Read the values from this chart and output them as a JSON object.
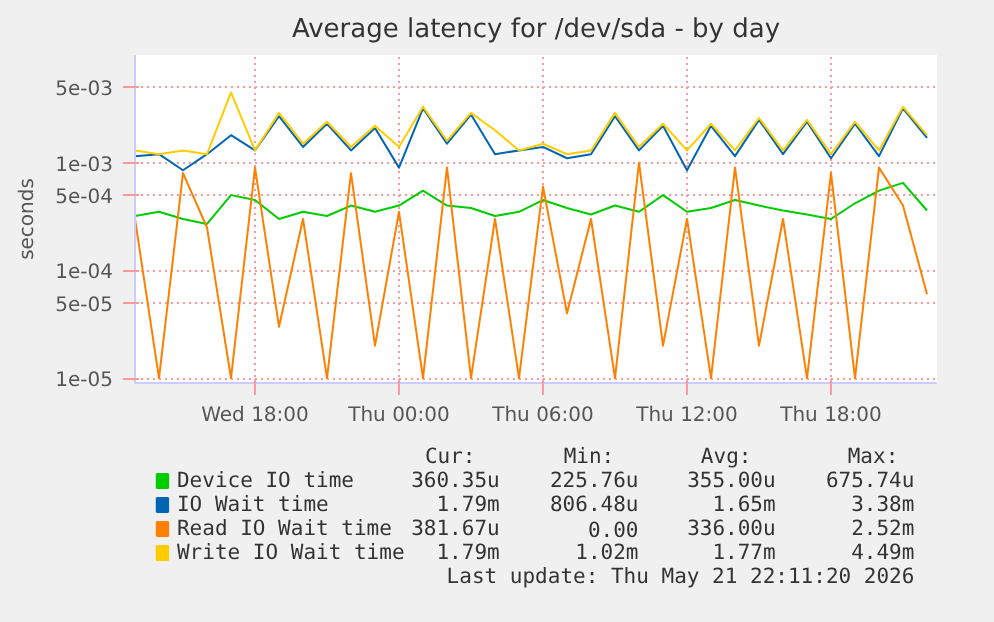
{
  "chart_data": {
    "type": "line",
    "title": "Average latency for /dev/sda - by day",
    "ylabel": "seconds",
    "x": [
      "2026-05-20T13:00",
      "2026-05-20T14:00",
      "2026-05-20T15:00",
      "2026-05-20T16:00",
      "2026-05-20T17:00",
      "2026-05-20T18:00",
      "2026-05-20T19:00",
      "2026-05-20T20:00",
      "2026-05-20T21:00",
      "2026-05-20T22:00",
      "2026-05-20T23:00",
      "2026-05-21T00:00",
      "2026-05-21T01:00",
      "2026-05-21T02:00",
      "2026-05-21T03:00",
      "2026-05-21T04:00",
      "2026-05-21T05:00",
      "2026-05-21T06:00",
      "2026-05-21T07:00",
      "2026-05-21T08:00",
      "2026-05-21T09:00",
      "2026-05-21T10:00",
      "2026-05-21T11:00",
      "2026-05-21T12:00",
      "2026-05-21T13:00",
      "2026-05-21T14:00",
      "2026-05-21T15:00",
      "2026-05-21T16:00",
      "2026-05-21T17:00",
      "2026-05-21T18:00",
      "2026-05-21T19:00",
      "2026-05-21T20:00",
      "2026-05-21T21:00",
      "2026-05-21T22:00"
    ],
    "series": [
      {
        "name": "Device IO time",
        "color": "#00cc00",
        "values": [
          0.00032,
          0.00035,
          0.0003,
          0.00027,
          0.0005,
          0.00045,
          0.0003,
          0.00035,
          0.00032,
          0.0004,
          0.00035,
          0.0004,
          0.00055,
          0.0004,
          0.00038,
          0.00032,
          0.00035,
          0.00045,
          0.00038,
          0.00033,
          0.0004,
          0.00035,
          0.0005,
          0.00035,
          0.00038,
          0.00045,
          0.0004,
          0.00036,
          0.00033,
          0.0003,
          0.00042,
          0.00055,
          0.00065,
          0.00036
        ]
      },
      {
        "name": "IO Wait time",
        "color": "#0066b3",
        "values": [
          0.00115,
          0.0012,
          0.00085,
          0.0012,
          0.0018,
          0.0013,
          0.0027,
          0.0014,
          0.0023,
          0.0013,
          0.0021,
          0.0009,
          0.0032,
          0.0015,
          0.0028,
          0.0012,
          0.0013,
          0.0014,
          0.0011,
          0.0012,
          0.0027,
          0.0013,
          0.0022,
          0.00085,
          0.0022,
          0.00115,
          0.0025,
          0.0012,
          0.0024,
          0.0011,
          0.0023,
          0.00115,
          0.0032,
          0.0017
        ]
      },
      {
        "name": "Read IO Wait time",
        "color": "#ff8000",
        "values": [
          0.0003,
          1e-05,
          0.0008,
          0.00025,
          1e-05,
          0.0009,
          3e-05,
          0.0003,
          1e-05,
          0.0008,
          2e-05,
          0.00035,
          1e-05,
          0.0009,
          1e-05,
          0.0003,
          1e-05,
          0.0006,
          4e-05,
          0.0003,
          1e-05,
          0.001,
          2e-05,
          0.0003,
          1e-05,
          0.0009,
          2e-05,
          0.0003,
          1e-05,
          0.0008,
          1e-05,
          0.0009,
          0.0004,
          6e-05
        ]
      },
      {
        "name": "Write IO Wait time",
        "color": "#ffcc00",
        "values": [
          0.0013,
          0.0012,
          0.0013,
          0.0012,
          0.0045,
          0.0013,
          0.0029,
          0.0015,
          0.0024,
          0.0014,
          0.0022,
          0.0014,
          0.0033,
          0.0016,
          0.0029,
          0.002,
          0.0013,
          0.0015,
          0.0012,
          0.0013,
          0.0029,
          0.0014,
          0.0023,
          0.0013,
          0.0023,
          0.0013,
          0.0026,
          0.0013,
          0.0025,
          0.0012,
          0.0024,
          0.0013,
          0.0033,
          0.0018
        ]
      }
    ],
    "xlim": [
      "2026-05-20T13:00",
      "2026-05-21T22:25"
    ],
    "xticks": [
      {
        "value": "2026-05-20T18:00",
        "label": "Wed 18:00"
      },
      {
        "value": "2026-05-21T00:00",
        "label": "Thu 00:00"
      },
      {
        "value": "2026-05-21T06:00",
        "label": "Thu 06:00"
      },
      {
        "value": "2026-05-21T12:00",
        "label": "Thu 12:00"
      },
      {
        "value": "2026-05-21T18:00",
        "label": "Thu 18:00"
      }
    ],
    "ylim": [
      9e-06,
      0.01
    ],
    "yticks": [
      {
        "value": 1e-05,
        "label": "1e-05"
      },
      {
        "value": 5e-05,
        "label": "5e-05"
      },
      {
        "value": 0.0001,
        "label": "1e-04"
      },
      {
        "value": 0.0005,
        "label": "5e-04"
      },
      {
        "value": 0.001,
        "label": "1e-03"
      },
      {
        "value": 0.005,
        "label": "5e-03"
      }
    ],
    "log": "y",
    "grid": true,
    "legend": "bottom",
    "line_style": "solid",
    "marker": "none",
    "annotations": [
      "Cur:",
      "Min:",
      "Avg:",
      "Max:",
      "360.35u",
      "225.76u",
      "355.00u",
      "675.74u",
      "1.79m",
      "806.48u",
      "1.65m",
      "3.38m",
      "381.67u",
      "0.00",
      "336.00u",
      "2.52m",
      "1.79m",
      "1.02m",
      "1.77m",
      "4.49m",
      "Last update: Thu May 21 22:11:20 2026"
    ]
  }
}
